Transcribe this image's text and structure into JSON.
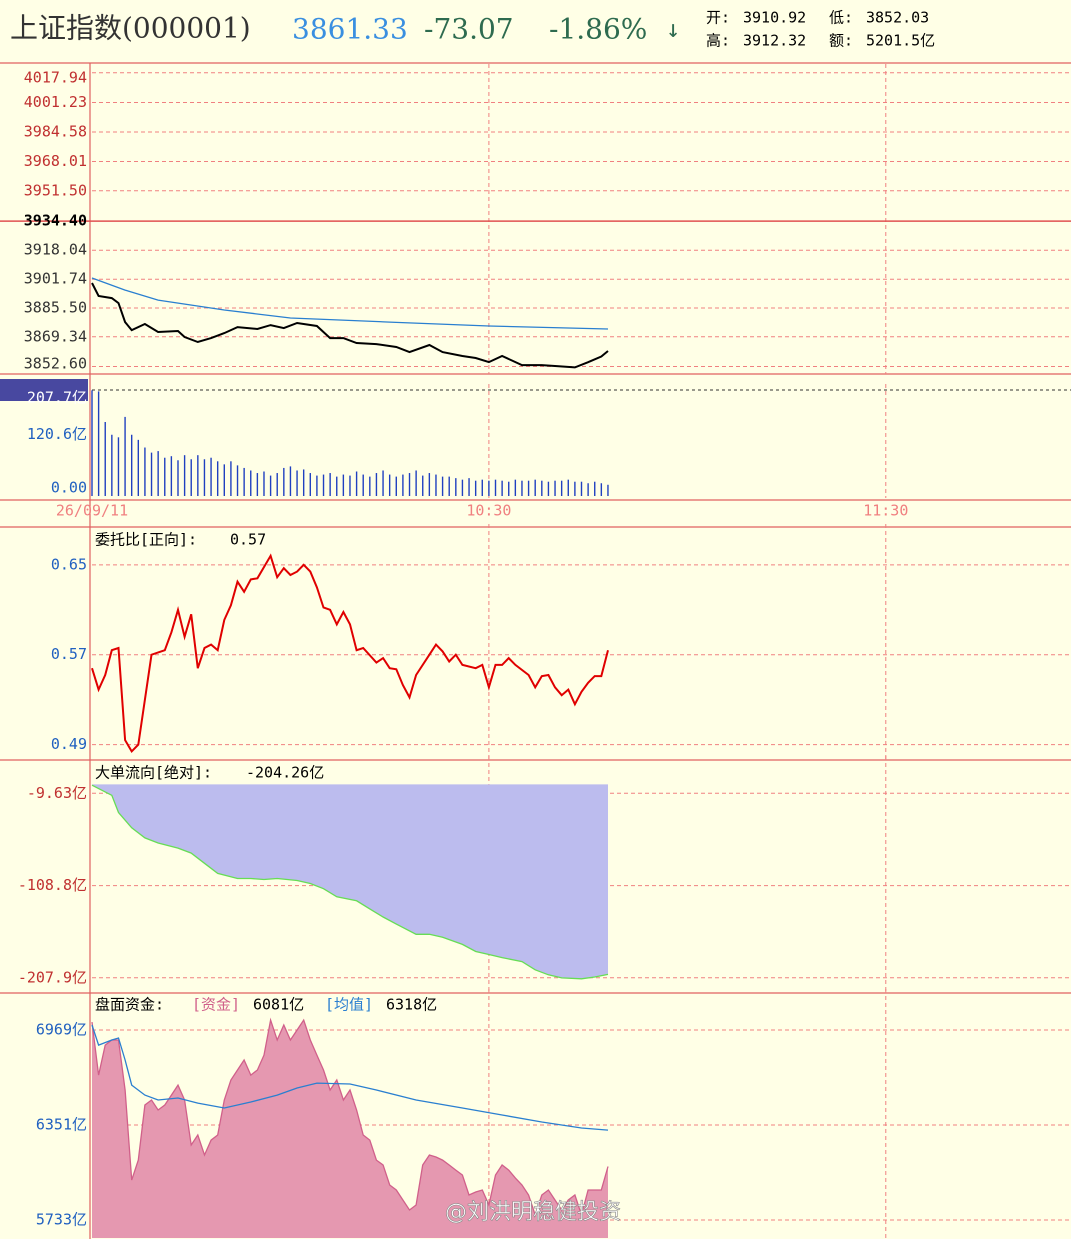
{
  "header": {
    "title": "上证指数(000001)",
    "price": "3861.33",
    "change": "-73.07",
    "change_pct": "-1.86%",
    "arrow": "↓",
    "open_label": "开:",
    "open": "3910.92",
    "low_label": "低:",
    "low": "3852.03",
    "high_label": "高:",
    "high": "3912.32",
    "amount_label": "额:",
    "amount": "5201.5亿"
  },
  "watermark": "@刘洪明稳健投资",
  "chart_data": [
    {
      "type": "line",
      "xlim": [
        0,
        148
      ],
      "ylim": [
        3849.5,
        4019.5
      ],
      "grid": true,
      "ref_line": 3934.4,
      "tick_color": "#c03030",
      "yticks": [
        4017.94,
        4001.23,
        3984.58,
        3968.01,
        {
          "value": 3951.5,
          "label": "3951.50"
        },
        {
          "value": 3934.4,
          "label": "3934.40"
        },
        3918.04,
        3901.74,
        {
          "value": 3885.5,
          "label": "3885.50"
        },
        3869.34,
        {
          "value": 3852.6,
          "label": "3852.60"
        }
      ],
      "series": [
        {
          "color": "#000000",
          "x": [
            0,
            1,
            3,
            4,
            5,
            6,
            8,
            10,
            13,
            14,
            16,
            18,
            20,
            22,
            25,
            27,
            29,
            31,
            34,
            36,
            38,
            40,
            43,
            46,
            48,
            51,
            53,
            56,
            58,
            60,
            62,
            65,
            68,
            70,
            73,
            75,
            77,
            78
          ],
          "values": [
            3899.6,
            3892.3,
            3891.1,
            3888.3,
            3877.6,
            3873.1,
            3876.5,
            3872.0,
            3872.6,
            3869.2,
            3866.4,
            3868.6,
            3871.4,
            3874.8,
            3873.7,
            3875.9,
            3874.2,
            3877.1,
            3875.4,
            3868.6,
            3868.6,
            3865.8,
            3865.2,
            3863.6,
            3860.7,
            3864.7,
            3860.7,
            3858.5,
            3857.4,
            3855.1,
            3858.5,
            3853.4,
            3853.4,
            3852.9,
            3852.1,
            3855.0,
            3858.2,
            3861.3
          ]
        },
        {
          "color": "#2a7fd0",
          "x": [
            0,
            5,
            10,
            20,
            30,
            45,
            60,
            78
          ],
          "values": [
            3902.4,
            3895.6,
            3890.0,
            3884.4,
            3879.9,
            3877.6,
            3875.4,
            3873.7
          ]
        }
      ]
    },
    {
      "type": "bar",
      "xlim": [
        0,
        148
      ],
      "ylim": [
        0,
        207.7
      ],
      "grid": false,
      "tick_color": "#2060c0",
      "yticks": [
        {
          "value": 207.7,
          "label": "207.7亿"
        },
        {
          "value": 120.6,
          "label": "120.6亿"
        },
        {
          "value": 0,
          "label": "0.00"
        }
      ],
      "xticks": [
        {
          "value": 0,
          "label": "26/09/11"
        },
        {
          "value": 60,
          "label": "10:30"
        },
        {
          "value": 120,
          "label": "11:30"
        }
      ],
      "x": [
        0,
        1,
        2,
        3,
        4,
        5,
        6,
        7,
        8,
        9,
        10,
        11,
        12,
        13,
        14,
        15,
        16,
        17,
        18,
        19,
        20,
        21,
        22,
        23,
        24,
        25,
        26,
        27,
        28,
        29,
        30,
        31,
        32,
        33,
        34,
        35,
        36,
        37,
        38,
        39,
        40,
        41,
        42,
        43,
        44,
        45,
        46,
        47,
        48,
        49,
        50,
        51,
        52,
        53,
        54,
        55,
        56,
        57,
        58,
        59,
        60,
        61,
        62,
        63,
        64,
        65,
        66,
        67,
        68,
        69,
        70,
        71,
        72,
        73,
        74,
        75,
        76,
        77,
        78
      ],
      "series": [
        {
          "color": "#2040c0",
          "values": [
            207,
            205,
            145,
            120,
            115,
            155,
            120,
            110,
            95,
            85,
            88,
            75,
            78,
            70,
            80,
            72,
            80,
            72,
            75,
            68,
            62,
            68,
            60,
            55,
            50,
            45,
            48,
            40,
            45,
            55,
            58,
            50,
            52,
            45,
            40,
            42,
            45,
            38,
            42,
            40,
            48,
            42,
            38,
            45,
            50,
            42,
            38,
            42,
            45,
            50,
            40,
            45,
            42,
            38,
            38,
            35,
            32,
            35,
            30,
            32,
            30,
            32,
            30,
            28,
            32,
            30,
            30,
            32,
            30,
            28,
            30,
            30,
            32,
            28,
            28,
            25,
            28,
            25,
            22
          ]
        }
      ]
    },
    {
      "type": "line",
      "title": "委托比[正向]:",
      "current": "0.57",
      "xlim": [
        0,
        148
      ],
      "ylim": [
        0.479,
        0.681
      ],
      "grid": true,
      "tick_color": "#2060c0",
      "yticks": [
        0.65,
        0.57,
        0.49
      ],
      "series": [
        {
          "color": "#e00000",
          "x": [
            0,
            1,
            2,
            3,
            4,
            5,
            6,
            7,
            9,
            11,
            12,
            13,
            14,
            15,
            16,
            17,
            18,
            19,
            20,
            21,
            22,
            23,
            24,
            25,
            27,
            28,
            29,
            30,
            31,
            32,
            33,
            34,
            35,
            36,
            37,
            38,
            39,
            40,
            41,
            43,
            44,
            45,
            46,
            47,
            48,
            49,
            51,
            52,
            53,
            54,
            55,
            56,
            58,
            59,
            60,
            61,
            62,
            63,
            64,
            66,
            67,
            68,
            69,
            70,
            71,
            72,
            73,
            74,
            75,
            76,
            77,
            78
          ],
          "values": [
            0.558,
            0.539,
            0.552,
            0.574,
            0.576,
            0.494,
            0.484,
            0.49,
            0.57,
            0.574,
            0.59,
            0.61,
            0.586,
            0.606,
            0.558,
            0.576,
            0.579,
            0.574,
            0.601,
            0.614,
            0.635,
            0.626,
            0.637,
            0.638,
            0.658,
            0.639,
            0.647,
            0.641,
            0.644,
            0.65,
            0.644,
            0.63,
            0.612,
            0.61,
            0.597,
            0.608,
            0.597,
            0.574,
            0.576,
            0.563,
            0.567,
            0.558,
            0.557,
            0.543,
            0.532,
            0.552,
            0.57,
            0.579,
            0.573,
            0.564,
            0.57,
            0.561,
            0.558,
            0.561,
            0.541,
            0.561,
            0.561,
            0.567,
            0.561,
            0.552,
            0.541,
            0.551,
            0.552,
            0.541,
            0.534,
            0.539,
            0.526,
            0.537,
            0.545,
            0.551,
            0.551,
            0.574
          ]
        }
      ]
    },
    {
      "type": "area",
      "title": "大单流向[绝对]:",
      "current": "-204.26亿",
      "xlim": [
        0,
        148
      ],
      "ylim": [
        -221,
        24
      ],
      "grid": true,
      "tick_color": "#c03030",
      "yticks": [
        {
          "value": -9.63,
          "label": "-9.63亿"
        },
        {
          "value": -108.8,
          "label": "-108.8亿"
        },
        {
          "value": -207.9,
          "label": "-207.9亿"
        }
      ],
      "series": [
        {
          "color": "#66dd55",
          "fill": "#bcbcee",
          "x": [
            0,
            3,
            4,
            6,
            8,
            10,
            13,
            15,
            17,
            19,
            22,
            24,
            26,
            28,
            31,
            33,
            35,
            37,
            40,
            42,
            44,
            46,
            49,
            51,
            53,
            56,
            58,
            60,
            62,
            65,
            67,
            69,
            71,
            74,
            76,
            78
          ],
          "values": [
            -0.9,
            -11.8,
            -30.3,
            -46.7,
            -57.6,
            -63.0,
            -68.5,
            -73.9,
            -84.8,
            -95.7,
            -101.2,
            -101.2,
            -102.3,
            -101.2,
            -103.3,
            -106.6,
            -112.1,
            -120.8,
            -125.2,
            -133.9,
            -142.6,
            -150.2,
            -161.1,
            -161.1,
            -164.4,
            -172.0,
            -179.6,
            -182.9,
            -186.2,
            -190.5,
            -199.3,
            -204.7,
            -208.0,
            -209.0,
            -207.0,
            -204.26
          ]
        }
      ]
    },
    {
      "type": "area",
      "title": "盘面资金:",
      "legend_values": [
        "6081亿",
        "6318亿"
      ],
      "xlim": [
        0,
        148
      ],
      "ylim": [
        5616,
        7197
      ],
      "grid": true,
      "tick_color": "#2060c0",
      "yticks": [
        {
          "value": 6969,
          "label": "6969亿"
        },
        {
          "value": 6351,
          "label": "6351亿"
        },
        {
          "value": 5733,
          "label": "5733亿"
        }
      ],
      "x": [
        0,
        1,
        2,
        3,
        4,
        5,
        6,
        7,
        8,
        9,
        10,
        11,
        12,
        13,
        14,
        15,
        16,
        17,
        18,
        19,
        20,
        21,
        22,
        23,
        24,
        25,
        26,
        27,
        28,
        29,
        30,
        31,
        32,
        33,
        34,
        35,
        36,
        37,
        38,
        39,
        40,
        41,
        42,
        43,
        44,
        45,
        46,
        47,
        48,
        49,
        50,
        51,
        52,
        53,
        54,
        55,
        56,
        57,
        58,
        59,
        60,
        61,
        62,
        63,
        64,
        65,
        66,
        67,
        68,
        69,
        70,
        71,
        72,
        73,
        74,
        75,
        76,
        77,
        78
      ],
      "series": [
        {
          "name": "[资金]",
          "color": "#d0608a",
          "fill": "#e598b0",
          "values": [
            7021,
            6676,
            6871,
            6904,
            6904,
            6579,
            5993,
            6123,
            6481,
            6514,
            6449,
            6481,
            6546,
            6611,
            6514,
            6221,
            6286,
            6156,
            6253,
            6286,
            6514,
            6644,
            6709,
            6774,
            6676,
            6709,
            6806,
            7034,
            6904,
            7002,
            6904,
            6969,
            7034,
            6904,
            6806,
            6709,
            6579,
            6644,
            6514,
            6579,
            6449,
            6286,
            6253,
            6123,
            6091,
            5961,
            5928,
            5863,
            5798,
            5831,
            6091,
            6156,
            6143,
            6123,
            6091,
            6058,
            6026,
            5896,
            5915,
            5928,
            5831,
            6026,
            6091,
            6058,
            6006,
            5961,
            5896,
            5766,
            5896,
            5928,
            5863,
            5798,
            5863,
            5896,
            5766,
            5928,
            5928,
            5928,
            6081
          ]
        },
        {
          "name": "[均值]",
          "type": "line",
          "color": "#2a7fd0",
          "x": [
            0,
            1,
            3,
            4,
            5,
            6,
            8,
            10,
            13,
            16,
            20,
            24,
            28,
            31,
            34,
            39,
            43,
            49,
            56,
            62,
            68,
            74,
            78
          ],
          "values": [
            7002,
            6871,
            6904,
            6917,
            6774,
            6611,
            6546,
            6514,
            6527,
            6494,
            6462,
            6501,
            6546,
            6592,
            6624,
            6618,
            6579,
            6514,
            6462,
            6416,
            6371,
            6332,
            6318
          ]
        }
      ]
    }
  ]
}
